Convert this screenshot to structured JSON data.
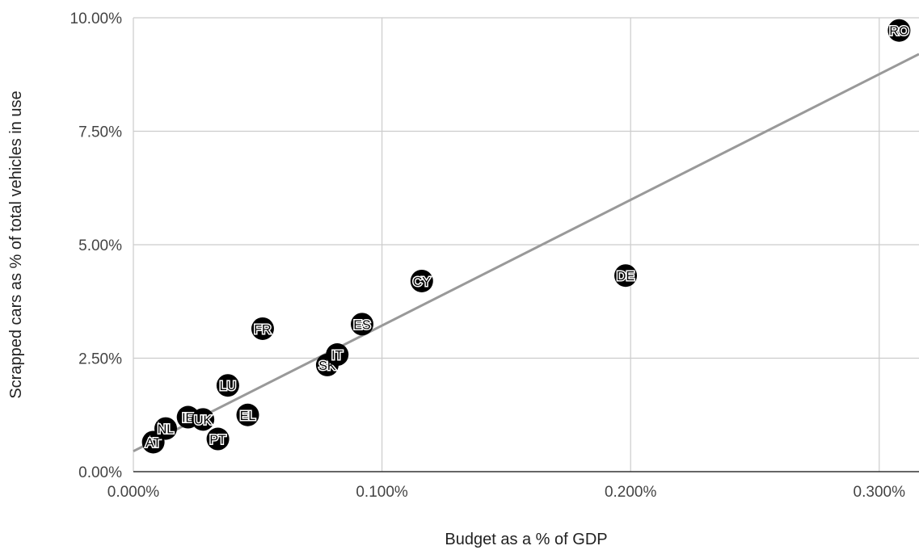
{
  "chart_data": {
    "type": "scatter",
    "title": "",
    "xlabel": "Budget as a % of GDP",
    "ylabel": "Scrapped cars as % of total vehicles in use",
    "xlim": [
      0,
      0.316
    ],
    "ylim": [
      0,
      10
    ],
    "x_ticks": [
      {
        "value": 0,
        "label": "0.000%"
      },
      {
        "value": 0.1,
        "label": "0.100%"
      },
      {
        "value": 0.2,
        "label": "0.200%"
      },
      {
        "value": 0.3,
        "label": "0.300%"
      }
    ],
    "y_ticks": [
      {
        "value": 0,
        "label": "0.00%"
      },
      {
        "value": 2.5,
        "label": "2.50%"
      },
      {
        "value": 5,
        "label": "5.00%"
      },
      {
        "value": 7.5,
        "label": "7.50%"
      },
      {
        "value": 10,
        "label": "10.00%"
      }
    ],
    "grid": true,
    "legend": "none",
    "marker_color": "#000000",
    "trendline": {
      "type": "linear",
      "color": "#999999",
      "points": [
        [
          0,
          0.45
        ],
        [
          0.316,
          9.2
        ]
      ]
    },
    "points": [
      {
        "label": "AT",
        "x": 0.008,
        "y": 0.65
      },
      {
        "label": "NL",
        "x": 0.013,
        "y": 0.95
      },
      {
        "label": "IE",
        "x": 0.022,
        "y": 1.2
      },
      {
        "label": "UK",
        "x": 0.028,
        "y": 1.15
      },
      {
        "label": "PT",
        "x": 0.034,
        "y": 0.72
      },
      {
        "label": "LU",
        "x": 0.038,
        "y": 1.9
      },
      {
        "label": "EL",
        "x": 0.046,
        "y": 1.25
      },
      {
        "label": "FR",
        "x": 0.052,
        "y": 3.15
      },
      {
        "label": "SK",
        "x": 0.078,
        "y": 2.35
      },
      {
        "label": "IT",
        "x": 0.082,
        "y": 2.58
      },
      {
        "label": "ES",
        "x": 0.092,
        "y": 3.25
      },
      {
        "label": "CY",
        "x": 0.116,
        "y": 4.2
      },
      {
        "label": "DE",
        "x": 0.198,
        "y": 4.32
      },
      {
        "label": "RO",
        "x": 0.308,
        "y": 9.72
      }
    ]
  }
}
